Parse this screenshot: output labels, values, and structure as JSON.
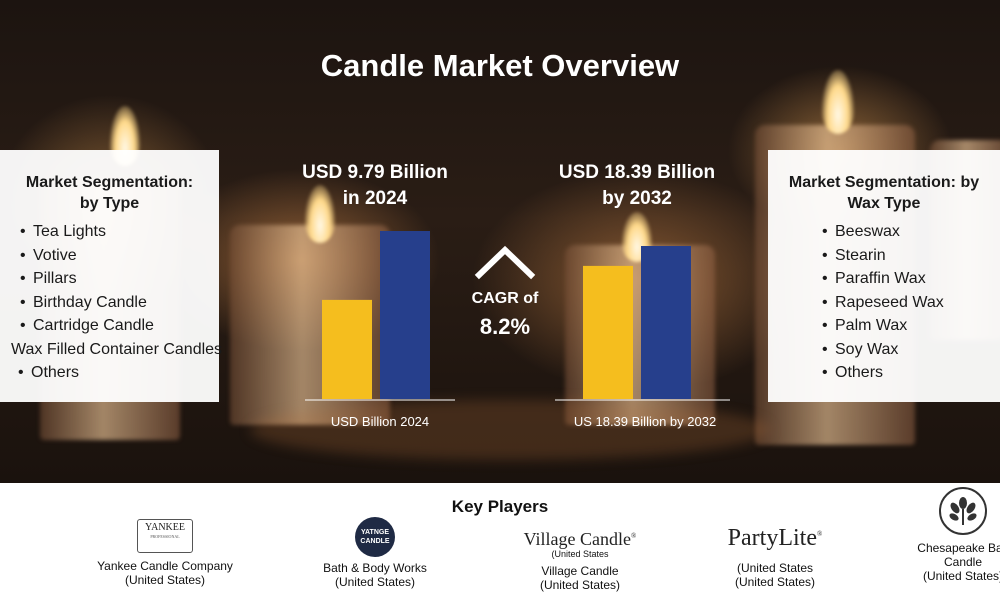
{
  "title": "Candle Market Overview",
  "segmentation_type": {
    "heading": "Market Segmentation: by Type",
    "items": [
      "Tea Lights",
      "Votive",
      "Pillars",
      "Birthday Candle",
      "Cartridge Candle",
      "Wax Filled Container Candles",
      "Others"
    ]
  },
  "segmentation_wax": {
    "heading": "Market Segmentation: by Wax Type",
    "items": [
      "Beeswax",
      "Stearin",
      "Paraffin Wax",
      "Rapeseed Wax",
      "Palm Wax",
      "Soy Wax",
      "Others"
    ]
  },
  "stat_2024": {
    "line1": "USD 9.79 Billion",
    "line2": "in 2024"
  },
  "stat_2032": {
    "line1": "USD 18.39 Billion",
    "line2": "by 2032"
  },
  "cagr": {
    "label": "CAGR of",
    "value": "8.2%"
  },
  "colors": {
    "bar_yellow": "#F5BE1E",
    "bar_blue": "#263F8C",
    "axis": "#ffffff"
  },
  "chart_data": [
    {
      "type": "bar",
      "xlabel": "USD Billion 2024",
      "values": [
        0.59,
        1.0
      ],
      "colors": [
        "#F5BE1E",
        "#263F8C"
      ],
      "ylim": [
        0,
        1
      ]
    },
    {
      "type": "bar",
      "xlabel": "US 18.39 Billion by 2032",
      "values": [
        0.87,
        1.0
      ],
      "colors": [
        "#F5BE1E",
        "#263F8C"
      ],
      "ylim": [
        0,
        1
      ]
    }
  ],
  "key_players": {
    "title": "Key Players",
    "players": [
      {
        "logo_text": "YANKEE",
        "logo_fine": "PROFESSIONAL",
        "name": "Yankee Candle Company",
        "country": "(United States)"
      },
      {
        "logo_text": "YATNGE CANDLE",
        "name": "Bath & Body Works",
        "country": "(United States)"
      },
      {
        "logo_text": "Village Candle",
        "logo_sub": "(United States",
        "name": "Village Candle",
        "country": "(United States)"
      },
      {
        "logo_text": "PartyLite",
        "name": "(United States",
        "country": "(United States)"
      },
      {
        "logo_icon": "tree-logo-icon",
        "name_line1": "Chesapeake Bay",
        "name_line2": "Candle",
        "country": "(United States)"
      }
    ]
  }
}
